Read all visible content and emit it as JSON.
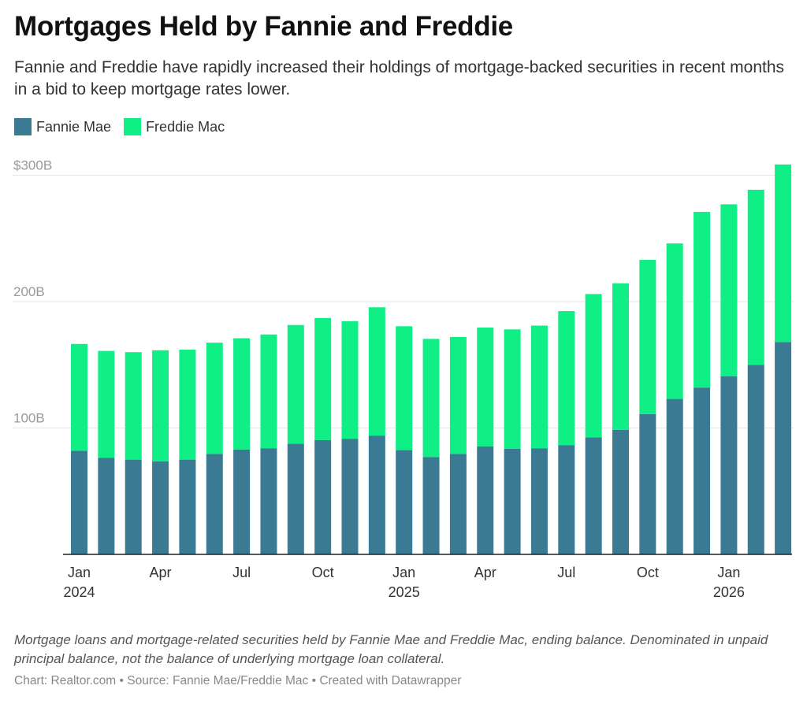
{
  "title": "Mortgages Held by Fannie and Freddie",
  "subtitle": "Fannie and Freddie have rapidly increased their holdings of mortgage-backed securities in recent months in a bid to keep mortgage rates lower.",
  "note": "Mortgage loans and mortgage-related securities held by Fannie Mae and Freddie Mac, ending balance. Denominated in unpaid principal balance, not the balance of underlying mortgage loan collateral.",
  "credit": "Chart: Realtor.com • Source: Fannie Mae/Freddie Mac • Created with Datawrapper",
  "colors": {
    "fannie": "#3a7a92",
    "freddie": "#0fef86",
    "grid": "#e6e6e6",
    "axis": "#222222",
    "tick_text": "#999999",
    "x_text": "#333333"
  },
  "chart_data": {
    "type": "bar",
    "stacked": true,
    "title": "Mortgages Held by Fannie and Freddie",
    "ylim": [
      0,
      300
    ],
    "yticks": [
      {
        "value": 100,
        "label": "100B"
      },
      {
        "value": 200,
        "label": "200B"
      },
      {
        "value": 300,
        "label": "$300B"
      }
    ],
    "categories": [
      "Jan 2024",
      "Feb 2024",
      "Mar 2024",
      "Apr 2024",
      "May 2024",
      "Jun 2024",
      "Jul 2024",
      "Aug 2024",
      "Sep 2024",
      "Oct 2024",
      "Nov 2024",
      "Dec 2024",
      "Jan 2025",
      "Feb 2025",
      "Mar 2025",
      "Apr 2025",
      "May 2025",
      "Jun 2025",
      "Jul 2025",
      "Aug 2025",
      "Sep 2025",
      "Oct 2025",
      "Nov 2025",
      "Dec 2025",
      "Jan 2026",
      "Feb 2026",
      "Mar 2026"
    ],
    "xticks": [
      {
        "index": 0,
        "month": "Jan",
        "year": "2024"
      },
      {
        "index": 3,
        "month": "Apr",
        "year": ""
      },
      {
        "index": 6,
        "month": "Jul",
        "year": ""
      },
      {
        "index": 9,
        "month": "Oct",
        "year": ""
      },
      {
        "index": 12,
        "month": "Jan",
        "year": "2025"
      },
      {
        "index": 15,
        "month": "Apr",
        "year": ""
      },
      {
        "index": 18,
        "month": "Jul",
        "year": ""
      },
      {
        "index": 21,
        "month": "Oct",
        "year": ""
      },
      {
        "index": 24,
        "month": "Jan",
        "year": "2026"
      }
    ],
    "series": [
      {
        "name": "Fannie Mae",
        "values": [
          82,
          76.5,
          75,
          73.5,
          75,
          79.5,
          83,
          84,
          87.5,
          90.5,
          91.5,
          94,
          82.5,
          77,
          79.5,
          85.5,
          83.5,
          84,
          86.5,
          92.5,
          98.5,
          111,
          123,
          132,
          141,
          150,
          168
        ]
      },
      {
        "name": "Freddie Mac",
        "values": [
          84.5,
          84.5,
          85,
          88,
          87,
          88,
          88,
          90,
          94,
          96.5,
          93,
          101.5,
          98,
          93.5,
          92.5,
          94,
          94.5,
          97,
          106,
          113.5,
          116,
          122,
          123,
          139,
          136,
          138.5,
          140.5
        ]
      }
    ],
    "legend": "top-left"
  }
}
